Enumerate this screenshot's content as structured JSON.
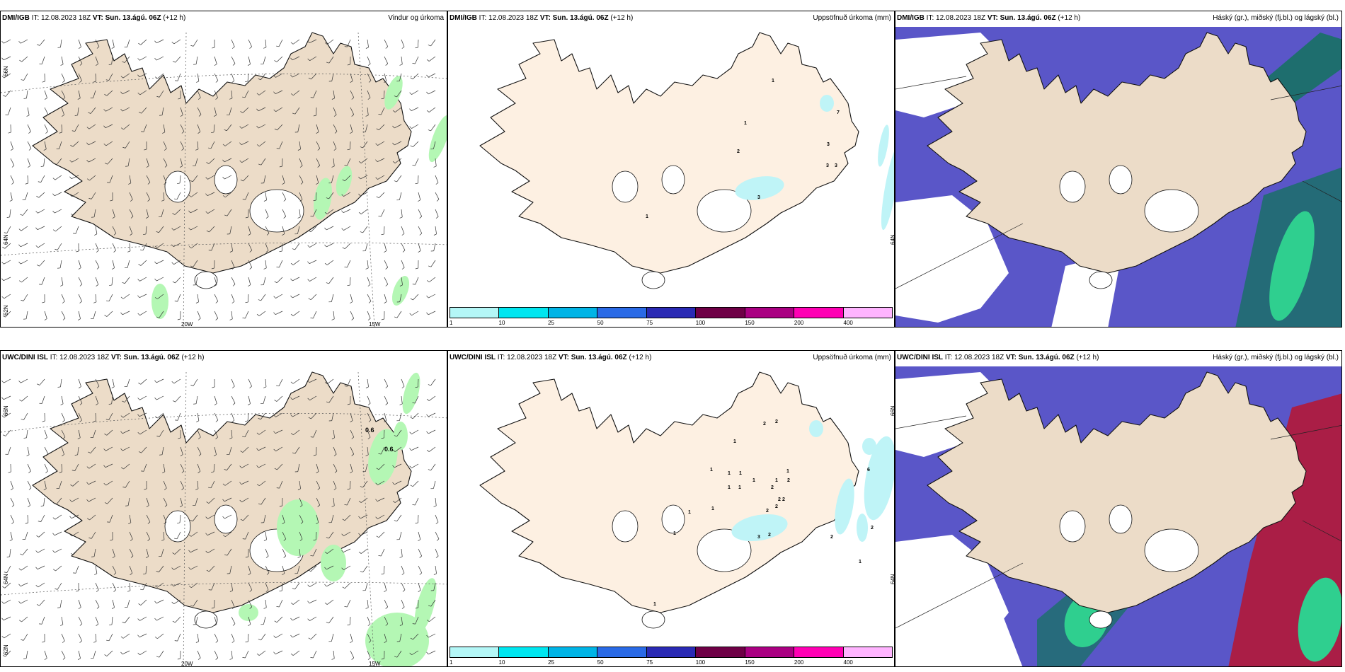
{
  "panels": [
    {
      "model": "DMI/IGB",
      "it_label": "IT:",
      "it": "12.08.2023 18Z",
      "vt_label": "VT:",
      "vt": "Sun. 13.ágú. 06Z",
      "lead": "(+12 h)",
      "product": "Vindur og úrkoma"
    },
    {
      "model": "DMI/IGB",
      "it_label": "IT:",
      "it": "12.08.2023 18Z",
      "vt_label": "VT:",
      "vt": "Sun. 13.ágú. 06Z",
      "lead": "(+12 h)",
      "product": "Uppsöfnuð úrkoma (mm)"
    },
    {
      "model": "DMI/IGB",
      "it_label": "IT:",
      "it": "12.08.2023 18Z",
      "vt_label": "VT:",
      "vt": "Sun. 13.ágú. 06Z",
      "lead": "(+12 h)",
      "product": "Háský (gr.), miðský (fj.bl.) og lágský (bl.)"
    },
    {
      "model": "UWC/DINI ISL",
      "it_label": "IT:",
      "it": "12.08.2023 18Z",
      "vt_label": "VT:",
      "vt": "Sun. 13.ágú. 06Z",
      "lead": "(+12 h)",
      "product": ""
    },
    {
      "model": "UWC/DINI ISL",
      "it_label": "IT:",
      "it": "12.08.2023 18Z",
      "vt_label": "VT:",
      "vt": "Sun. 13.ágú. 06Z",
      "lead": "(+12 h)",
      "product": "Uppsöfnuð úrkoma (mm)"
    },
    {
      "model": "UWC/DINI ISL",
      "it_label": "IT:",
      "it": "12.08.2023 18Z",
      "vt_label": "VT:",
      "vt": "Sun. 13.ágú. 06Z",
      "lead": "(+12 h)",
      "product": "Háský (gr.), miðský (fj.bl.) og lágský (bl.)"
    }
  ],
  "axes": {
    "lat_66": "66N",
    "lat_64": "64N",
    "lat_62": "62N",
    "lon_20": "20W",
    "lon_15": "15W"
  },
  "colorbar": {
    "ticks": [
      "1",
      "10",
      "25",
      "50",
      "75",
      "100",
      "150",
      "200",
      "400"
    ],
    "colors": [
      "#b4f7f7",
      "#00e6f0",
      "#00b4e6",
      "#2a6ae6",
      "#2a2ab4",
      "#6e0046",
      "#aa0082",
      "#ff00b4",
      "#ffb4ff"
    ]
  },
  "precip_labels_top": [
    "1",
    "1",
    "2",
    "3",
    "3",
    "3",
    "7",
    "3",
    "1"
  ],
  "precip_labels_bottom": [
    "2",
    "2",
    "1",
    "1",
    "1",
    "1",
    "1",
    "1",
    "1",
    "1",
    "1",
    "2",
    "2",
    "2",
    "2",
    "2",
    "2",
    "6",
    "2",
    "1",
    "2",
    "3",
    "2",
    "1",
    "1",
    "1",
    "1",
    "1"
  ],
  "wind_labels_bottom": [
    "0.6",
    "0.6"
  ],
  "colors": {
    "land": "#ecdcc8",
    "land_precip": "#fdf0e2",
    "rain": "#b4f7b4",
    "precip_blue": "#bff4f7",
    "low_cloud": "#5a56c8",
    "high_cloud": "#1e6e6e",
    "mid_cloud": "#2fcf8f",
    "red_cloud": "#aa1e46"
  }
}
